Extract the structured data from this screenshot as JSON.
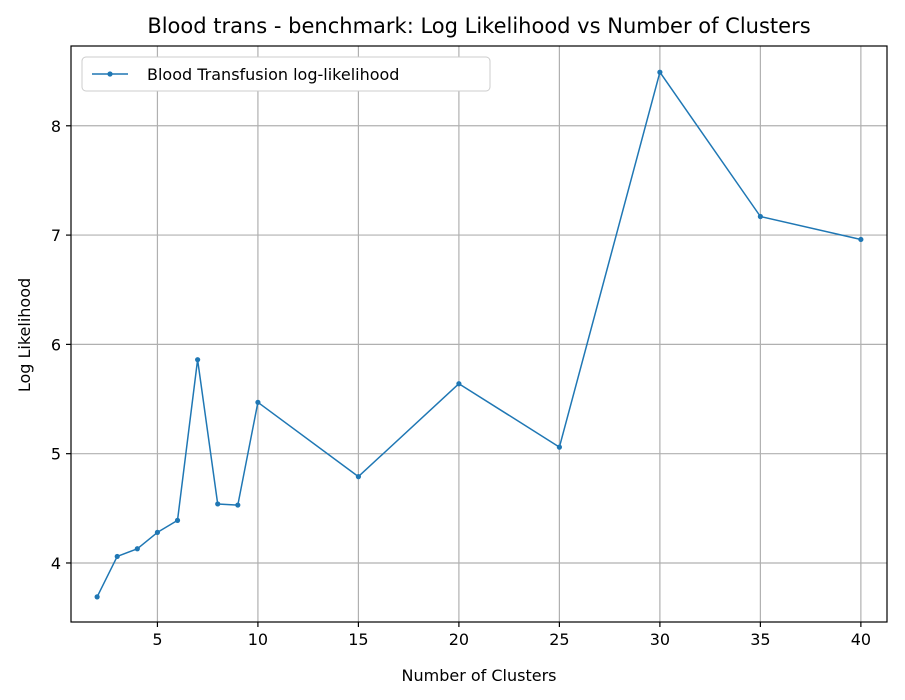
{
  "chart_data": {
    "type": "line",
    "title": "Blood trans - benchmark: Log Likelihood vs Number of Clusters",
    "xlabel": "Number of Clusters",
    "ylabel": "Log Likelihood",
    "xlim": [
      0.7,
      41.3
    ],
    "ylim": [
      3.46,
      8.73
    ],
    "xticks": [
      5,
      10,
      15,
      20,
      25,
      30,
      35,
      40
    ],
    "xtick_labels": [
      "5",
      "10",
      "15",
      "20",
      "25",
      "30",
      "35",
      "40"
    ],
    "yticks": [
      4,
      5,
      6,
      7,
      8
    ],
    "ytick_labels": [
      "4",
      "5",
      "6",
      "7",
      "8"
    ],
    "grid": true,
    "legend_position": "top-left",
    "series": [
      {
        "name": "Blood Transfusion log-likelihood",
        "color": "#1f77b4",
        "marker": "circle",
        "x": [
          2,
          3,
          4,
          5,
          6,
          7,
          8,
          9,
          10,
          15,
          20,
          25,
          30,
          35,
          40
        ],
        "y": [
          3.69,
          4.06,
          4.13,
          4.28,
          4.39,
          5.86,
          4.54,
          4.53,
          5.47,
          4.79,
          5.64,
          5.06,
          8.49,
          7.17,
          6.96
        ]
      }
    ]
  }
}
